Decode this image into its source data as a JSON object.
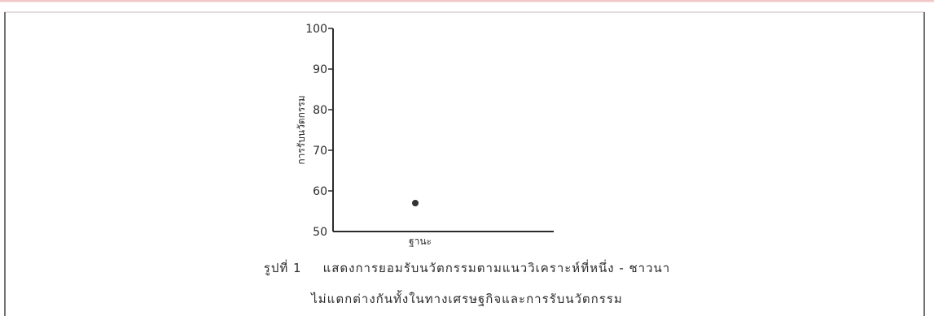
{
  "chart_data": {
    "type": "scatter",
    "title": "",
    "xlabel": "ฐานะ",
    "ylabel": "การรับนวัตกรรม",
    "ylim": [
      50,
      100
    ],
    "yticks": [
      50,
      60,
      70,
      80,
      90,
      100
    ],
    "grid": false,
    "x": [
      1
    ],
    "y": [
      57
    ]
  },
  "caption": {
    "figure_label": "รูปที่ 1",
    "line1": "แสดงการยอมรับนวัตกรรมตามแนววิเคราะห์ที่หนึ่ง - ชาวนา",
    "line2": "ไม่แตกต่างกันทั้งในทางเศรษฐกิจและการรับนวัตกรรม"
  },
  "colors": {
    "frame_top": "#f0c8c8",
    "ink": "#2b2b2b",
    "point": "#333333"
  }
}
